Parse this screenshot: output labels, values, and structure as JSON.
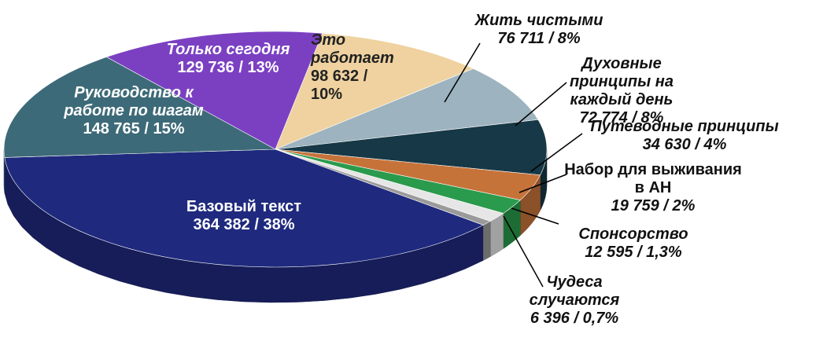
{
  "chart_data": {
    "type": "pie",
    "categories": [
      "Базовый текст",
      "Руководство к работе по шагам",
      "Только сегодня",
      "Это работает",
      "Жить чистыми",
      "Духовные принципы на каждый день",
      "Путеводные принципы",
      "Набор для выживания в АН",
      "Спонсорство",
      "Чудеса случаются"
    ],
    "values": [
      364382,
      148765,
      129736,
      98632,
      76711,
      72774,
      34630,
      19759,
      12595,
      6396
    ],
    "value_labels": [
      "364 382 / 38%",
      "148 765 / 15%",
      "129 736 / 13%",
      "98 632 / 10%",
      "76 711 / 8%",
      "72 774 / 8%",
      "34 630 / 4%",
      "19 759 / 2%",
      "12 595 / 1,3%",
      "6 396 / 0,7%"
    ],
    "colors": [
      "#1f2a7e",
      "#3d6a78",
      "#7b40c2",
      "#efd2a0",
      "#9db3bf",
      "#173846",
      "#c6733a",
      "#2a9a4c",
      "#e6e6e6",
      "#9a9a9a"
    ]
  }
}
